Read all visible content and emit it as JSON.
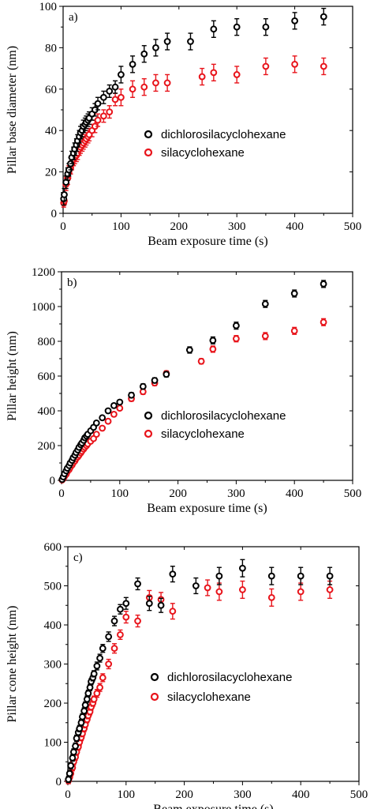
{
  "colors": {
    "series_a": "#000000",
    "series_b": "#e8141b"
  },
  "chart_data": [
    {
      "type": "scatter",
      "panel_label": "a)",
      "xlabel": "Beam exposure time (s)",
      "ylabel": "Pillar base diameter  (nm)",
      "xlim": [
        0,
        500
      ],
      "ylim": [
        0,
        100
      ],
      "xticks": [
        0,
        100,
        200,
        300,
        400,
        500
      ],
      "yticks": [
        0,
        20,
        40,
        60,
        80,
        100
      ],
      "legend_position": "center-right",
      "series": [
        {
          "name": "dichlorosilacyclohexane",
          "color": "#000000",
          "x": [
            1,
            2,
            5,
            8,
            10,
            13,
            15,
            18,
            20,
            23,
            25,
            28,
            30,
            33,
            35,
            38,
            40,
            43,
            45,
            50,
            55,
            60,
            70,
            80,
            90,
            100,
            120,
            140,
            160,
            180,
            220,
            260,
            300,
            350,
            400,
            450
          ],
          "y": [
            7,
            9,
            15,
            19,
            21,
            24,
            27,
            29,
            31,
            33,
            35,
            37,
            39,
            40,
            42,
            43,
            44,
            45,
            46,
            48,
            50,
            53,
            56,
            59,
            61,
            67,
            72,
            77,
            80,
            83,
            83,
            89,
            90,
            90,
            93,
            95
          ],
          "err": [
            3,
            3,
            3,
            3,
            3,
            3,
            3,
            3,
            3,
            3,
            3,
            3,
            3,
            3,
            3,
            3,
            3,
            3,
            3,
            3,
            3,
            3,
            3,
            3,
            3,
            4,
            4,
            4,
            4,
            4,
            4,
            4,
            4,
            4,
            4,
            4
          ]
        },
        {
          "name": "silacyclohexane",
          "color": "#e8141b",
          "x": [
            1,
            2,
            5,
            8,
            10,
            13,
            15,
            18,
            20,
            23,
            25,
            28,
            30,
            33,
            35,
            38,
            40,
            43,
            45,
            50,
            55,
            60,
            70,
            80,
            90,
            100,
            120,
            140,
            160,
            180,
            240,
            260,
            300,
            350,
            400,
            450
          ],
          "y": [
            5,
            6,
            14,
            17,
            20,
            22,
            24,
            26,
            27,
            28,
            29,
            31,
            32,
            33,
            34,
            35,
            36,
            37,
            38,
            40,
            42,
            45,
            47,
            49,
            55,
            56,
            60,
            61,
            63,
            63,
            66,
            68,
            67,
            71,
            72,
            71
          ],
          "err": [
            2,
            2,
            3,
            3,
            3,
            3,
            3,
            3,
            3,
            3,
            3,
            3,
            3,
            3,
            3,
            3,
            3,
            3,
            3,
            3,
            3,
            3,
            3,
            3,
            3,
            4,
            4,
            4,
            4,
            4,
            4,
            4,
            4,
            4,
            4,
            4
          ]
        }
      ]
    },
    {
      "type": "scatter",
      "panel_label": "b)",
      "xlabel": "Beam exposure time (s)",
      "ylabel": "Pillar height  (nm)",
      "xlim": [
        0,
        500
      ],
      "ylim": [
        0,
        1200
      ],
      "xticks": [
        0,
        100,
        200,
        300,
        400,
        500
      ],
      "yticks": [
        0,
        200,
        400,
        600,
        800,
        1000,
        1200
      ],
      "legend_position": "center-right",
      "series": [
        {
          "name": "dichlorosilacyclohexane",
          "color": "#000000",
          "x": [
            1,
            3,
            5,
            8,
            10,
            13,
            15,
            18,
            20,
            23,
            25,
            28,
            30,
            33,
            35,
            38,
            40,
            43,
            45,
            50,
            55,
            60,
            70,
            80,
            90,
            100,
            120,
            140,
            160,
            180,
            220,
            260,
            300,
            350,
            400,
            450
          ],
          "y": [
            5,
            20,
            38,
            55,
            70,
            85,
            100,
            115,
            130,
            145,
            160,
            175,
            190,
            205,
            215,
            230,
            245,
            255,
            265,
            285,
            305,
            330,
            360,
            400,
            430,
            450,
            490,
            540,
            575,
            610,
            750,
            805,
            890,
            1015,
            1075,
            1130
          ],
          "err": [
            8,
            8,
            8,
            8,
            8,
            8,
            8,
            8,
            8,
            8,
            8,
            8,
            8,
            8,
            8,
            8,
            8,
            8,
            8,
            10,
            10,
            10,
            10,
            12,
            12,
            12,
            15,
            15,
            15,
            15,
            18,
            20,
            20,
            20,
            20,
            20
          ]
        },
        {
          "name": "silacyclohexane",
          "color": "#e8141b",
          "x": [
            1,
            3,
            5,
            8,
            10,
            13,
            15,
            18,
            20,
            23,
            25,
            28,
            30,
            33,
            35,
            38,
            40,
            43,
            45,
            50,
            55,
            60,
            70,
            80,
            90,
            100,
            120,
            140,
            160,
            180,
            240,
            260,
            300,
            350,
            400,
            450
          ],
          "y": [
            2,
            10,
            22,
            35,
            50,
            62,
            75,
            88,
            100,
            112,
            125,
            135,
            145,
            158,
            168,
            180,
            190,
            200,
            210,
            225,
            240,
            265,
            300,
            340,
            380,
            415,
            470,
            510,
            560,
            615,
            685,
            755,
            815,
            830,
            860,
            910
          ],
          "err": [
            8,
            8,
            8,
            8,
            8,
            8,
            8,
            8,
            8,
            8,
            8,
            8,
            8,
            8,
            8,
            8,
            8,
            8,
            8,
            10,
            10,
            10,
            10,
            12,
            12,
            12,
            15,
            15,
            15,
            15,
            15,
            18,
            18,
            20,
            20,
            20
          ]
        }
      ]
    },
    {
      "type": "scatter",
      "panel_label": "c)",
      "xlabel": "Beam exposure time (s)",
      "ylabel": "Pillar cone height  (nm)",
      "xlim": [
        0,
        500
      ],
      "ylim": [
        0,
        600
      ],
      "xticks": [
        0,
        100,
        200,
        300,
        400,
        500
      ],
      "yticks": [
        0,
        100,
        200,
        300,
        400,
        500,
        600
      ],
      "legend_position": "center-right",
      "series": [
        {
          "name": "dichlorosilacyclohexane",
          "color": "#000000",
          "x": [
            1,
            3,
            5,
            8,
            10,
            13,
            15,
            18,
            20,
            23,
            25,
            28,
            30,
            33,
            35,
            38,
            40,
            43,
            45,
            50,
            55,
            60,
            70,
            80,
            90,
            100,
            120,
            140,
            160,
            180,
            220,
            260,
            300,
            350,
            400,
            450
          ],
          "y": [
            5,
            20,
            40,
            60,
            75,
            90,
            110,
            125,
            135,
            150,
            165,
            180,
            195,
            210,
            225,
            240,
            255,
            265,
            275,
            295,
            315,
            340,
            370,
            410,
            440,
            455,
            505,
            455,
            450,
            530,
            500,
            525,
            545,
            525,
            525,
            525
          ],
          "err": [
            8,
            8,
            8,
            8,
            8,
            8,
            8,
            8,
            8,
            8,
            8,
            8,
            8,
            8,
            8,
            8,
            8,
            8,
            8,
            10,
            10,
            10,
            12,
            12,
            12,
            15,
            15,
            18,
            18,
            20,
            20,
            22,
            22,
            22,
            22,
            22
          ]
        },
        {
          "name": "silacyclohexane",
          "color": "#e8141b",
          "x": [
            1,
            3,
            5,
            8,
            10,
            13,
            15,
            18,
            20,
            23,
            25,
            28,
            30,
            33,
            35,
            38,
            40,
            43,
            45,
            50,
            55,
            60,
            70,
            80,
            90,
            100,
            120,
            140,
            160,
            180,
            240,
            260,
            300,
            350,
            400,
            450
          ],
          "y": [
            2,
            10,
            20,
            35,
            50,
            62,
            75,
            88,
            100,
            112,
            122,
            135,
            145,
            158,
            168,
            178,
            190,
            200,
            210,
            225,
            240,
            265,
            300,
            340,
            375,
            420,
            410,
            470,
            465,
            435,
            495,
            485,
            490,
            470,
            485,
            490
          ],
          "err": [
            8,
            8,
            8,
            8,
            8,
            8,
            8,
            8,
            8,
            8,
            8,
            8,
            8,
            8,
            8,
            8,
            8,
            8,
            8,
            10,
            10,
            10,
            12,
            12,
            12,
            15,
            15,
            18,
            18,
            20,
            20,
            22,
            22,
            22,
            22,
            22
          ]
        }
      ]
    }
  ]
}
